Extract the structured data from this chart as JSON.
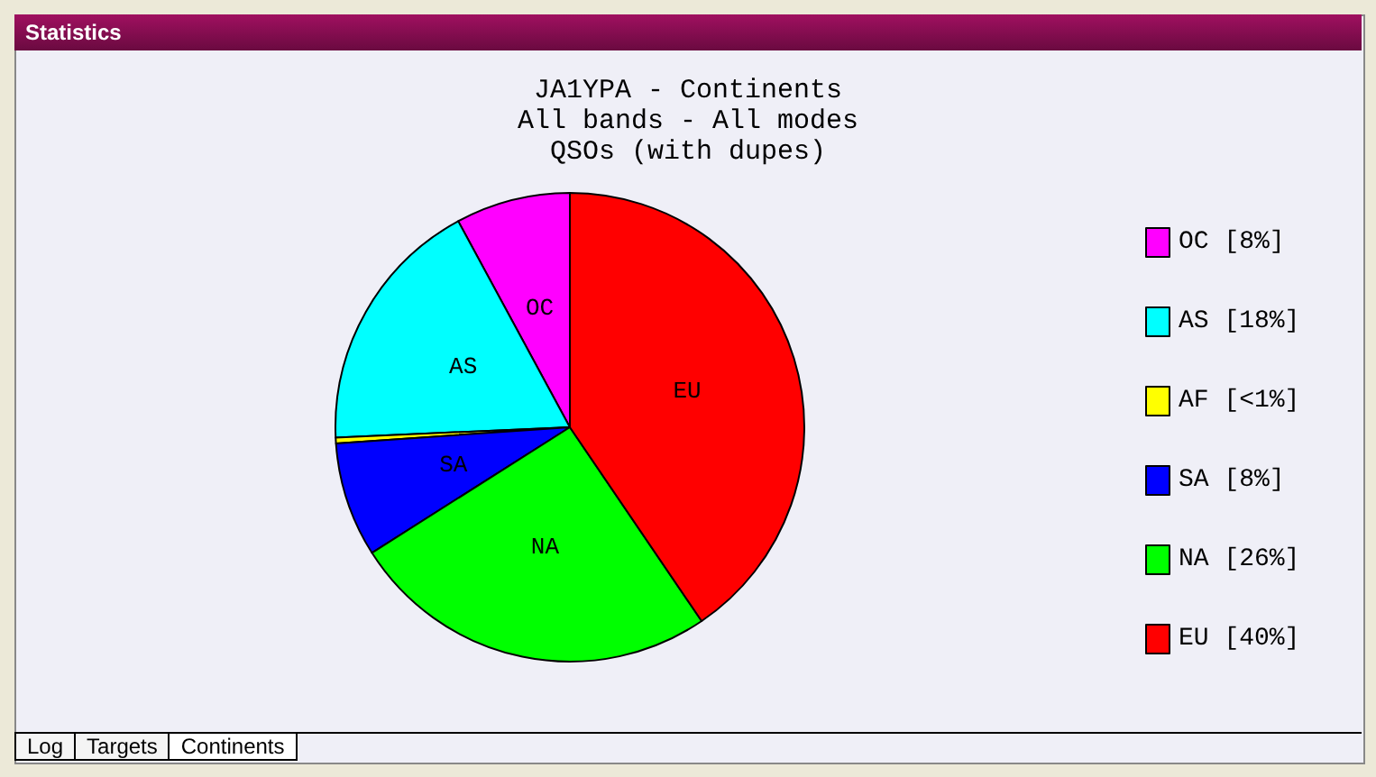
{
  "chart_data": {
    "type": "pie",
    "title": "JA1YPA - Continents",
    "subtitle": "All bands - All modes\nQSOs (with dupes)",
    "categories": [
      "OC",
      "AS",
      "AF",
      "SA",
      "NA",
      "EU"
    ],
    "values": [
      7.9,
      17.8,
      0.4,
      7.9,
      25.5,
      40.5
    ],
    "value_labels": [
      "[8%]",
      "[18%]",
      "[<1%]",
      "[8%]",
      "[26%]",
      "[40%]"
    ],
    "colors": [
      "#ff00ff",
      "#00ffff",
      "#ffff00",
      "#0000ff",
      "#00ff00",
      "#ff0000"
    ],
    "legend": "right",
    "annotations": [
      "Statistics",
      "Log",
      "Targets",
      "Continents"
    ]
  }
}
